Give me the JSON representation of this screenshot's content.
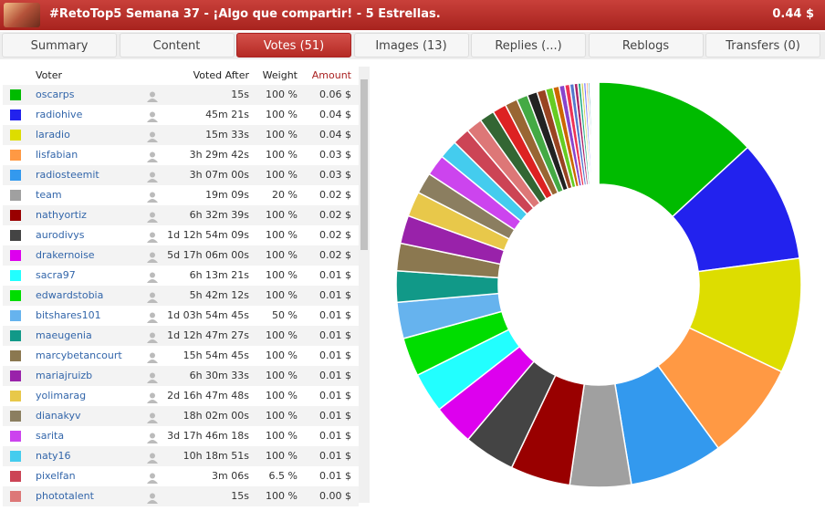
{
  "header": {
    "title": "#RetoTop5 Semana 37 - ¡Algo que compartir! - 5 Estrellas.",
    "payout": "0.44 $"
  },
  "tabs": [
    "Summary",
    "Content",
    "Votes (51)",
    "Images (13)",
    "Replies (...)",
    "Reblogs",
    "Transfers (0)"
  ],
  "active_tab": 2,
  "table": {
    "columns": [
      "Voter",
      "Voted After",
      "Weight",
      "Amount"
    ],
    "rows": [
      {
        "color": "#00bb00",
        "voter": "oscarps",
        "after": "15s",
        "weight": "100 %",
        "amount": "0.06 $"
      },
      {
        "color": "#2222ee",
        "voter": "radiohive",
        "after": "45m 21s",
        "weight": "100 %",
        "amount": "0.04 $"
      },
      {
        "color": "#dddd00",
        "voter": "laradio",
        "after": "15m 33s",
        "weight": "100 %",
        "amount": "0.04 $"
      },
      {
        "color": "#ff9944",
        "voter": "lisfabian",
        "after": "3h 29m 42s",
        "weight": "100 %",
        "amount": "0.03 $"
      },
      {
        "color": "#3399ee",
        "voter": "radiosteemit",
        "after": "3h 07m 00s",
        "weight": "100 %",
        "amount": "0.03 $"
      },
      {
        "color": "#a0a0a0",
        "voter": "team",
        "after": "19m 09s",
        "weight": "20 %",
        "amount": "0.02 $"
      },
      {
        "color": "#990000",
        "voter": "nathyortiz",
        "after": "6h 32m 39s",
        "weight": "100 %",
        "amount": "0.02 $"
      },
      {
        "color": "#444444",
        "voter": "aurodivys",
        "after": "1d 12h 54m 09s",
        "weight": "100 %",
        "amount": "0.02 $"
      },
      {
        "color": "#dd00ee",
        "voter": "drakernoise",
        "after": "5d 17h 06m 00s",
        "weight": "100 %",
        "amount": "0.02 $"
      },
      {
        "color": "#22ffff",
        "voter": "sacra97",
        "after": "6h 13m 21s",
        "weight": "100 %",
        "amount": "0.01 $"
      },
      {
        "color": "#00dd00",
        "voter": "edwardstobia",
        "after": "5h 42m 12s",
        "weight": "100 %",
        "amount": "0.01 $"
      },
      {
        "color": "#66b3ee",
        "voter": "bitshares101",
        "after": "1d 03h 54m 45s",
        "weight": "50 %",
        "amount": "0.01 $"
      },
      {
        "color": "#119988",
        "voter": "maeugenia",
        "after": "1d 12h 47m 27s",
        "weight": "100 %",
        "amount": "0.01 $"
      },
      {
        "color": "#8b7850",
        "voter": "marcybetancourt",
        "after": "15h 54m 45s",
        "weight": "100 %",
        "amount": "0.01 $"
      },
      {
        "color": "#9922aa",
        "voter": "mariajruizb",
        "after": "6h 30m 33s",
        "weight": "100 %",
        "amount": "0.01 $"
      },
      {
        "color": "#e8c84a",
        "voter": "yolimarag",
        "after": "2d 16h 47m 48s",
        "weight": "100 %",
        "amount": "0.01 $"
      },
      {
        "color": "#8b7e60",
        "voter": "dianakyv",
        "after": "18h 02m 00s",
        "weight": "100 %",
        "amount": "0.01 $"
      },
      {
        "color": "#cc44ee",
        "voter": "sarita",
        "after": "3d 17h 46m 18s",
        "weight": "100 %",
        "amount": "0.01 $"
      },
      {
        "color": "#44ccee",
        "voter": "naty16",
        "after": "10h 18m 51s",
        "weight": "100 %",
        "amount": "0.01 $"
      },
      {
        "color": "#cc4455",
        "voter": "pixelfan",
        "after": "3m 06s",
        "weight": "6.5 %",
        "amount": "0.01 $"
      },
      {
        "color": "#dd7777",
        "voter": "phototalent",
        "after": "15s",
        "weight": "100 %",
        "amount": "0.00 $"
      }
    ]
  },
  "chart_data": {
    "type": "donut",
    "values": [
      13.2,
      9.8,
      9.2,
      7.9,
      7.5,
      4.9,
      4.8,
      4.1,
      3.3,
      3.2,
      3.1,
      2.9,
      2.5,
      2.2,
      2.25,
      2,
      1.7,
      1.7,
      1.5,
      1.4,
      1.3,
      1.2,
      1.1,
      1.0,
      0.9,
      0.8,
      0.7,
      0.6,
      0.5,
      0.45,
      0.4,
      0.35,
      0.3,
      0.25,
      0.2,
      0.2,
      0.15,
      0.15,
      0.1,
      0.1,
      0.1,
      0.1,
      0.05,
      0.05,
      0.05,
      0.05,
      0.05,
      0.05
    ],
    "colors": [
      "#00bb00",
      "#2222ee",
      "#dddd00",
      "#ff9944",
      "#3399ee",
      "#a0a0a0",
      "#990000",
      "#444444",
      "#dd00ee",
      "#22ffff",
      "#00dd00",
      "#66b3ee",
      "#119988",
      "#8b7850",
      "#9922aa",
      "#e8c84a",
      "#8b7e60",
      "#cc44ee",
      "#44ccee",
      "#cc4455",
      "#dd7777",
      "#336633",
      "#dd2222",
      "#996633",
      "#44aa44",
      "#222222",
      "#994422",
      "#66cc22",
      "#cc6600",
      "#8844cc",
      "#ee3355",
      "#5577cc",
      "#aa2266",
      "#22aa88",
      "#cccc44",
      "#7777ff",
      "#ff7722",
      "#338899",
      "#aa88dd",
      "#55dd55",
      "#ee44aa",
      "#888888",
      "#44aa99",
      "#dd9966",
      "#6699cc",
      "#cc3333",
      "#99cc33",
      "#55bbdd"
    ]
  }
}
